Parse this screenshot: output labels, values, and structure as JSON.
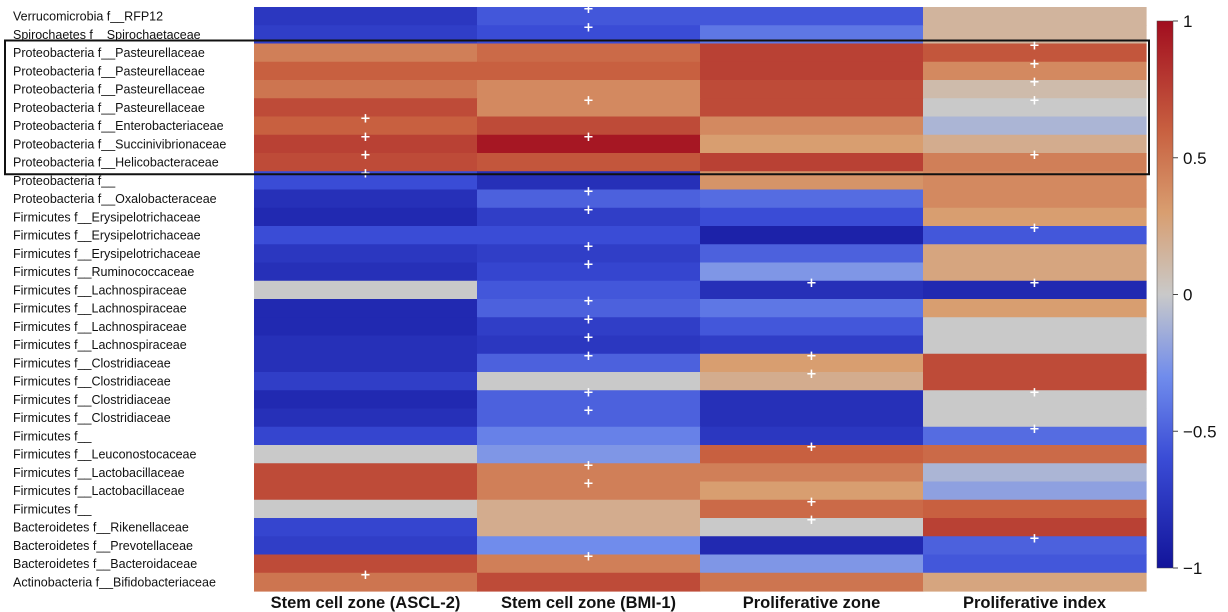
{
  "chart_data": {
    "type": "heatmap",
    "rows": [
      "Verrucomicrobia f__RFP12",
      "Spirochaetes f__Spirochaetaceae",
      "Proteobacteria f__Pasteurellaceae",
      "Proteobacteria f__Pasteurellaceae",
      "Proteobacteria f__Pasteurellaceae",
      "Proteobacteria f__Pasteurellaceae",
      "Proteobacteria f__Enterobacteriaceae",
      "Proteobacteria f__Succinivibrionaceae",
      "Proteobacteria f__Helicobacteraceae",
      "Proteobacteria f__",
      "Proteobacteria f__Oxalobacteraceae",
      "Firmicutes f__Erysipelotrichaceae",
      "Firmicutes f__Erysipelotrichaceae",
      "Firmicutes f__Erysipelotrichaceae",
      "Firmicutes f__Ruminococcaceae",
      "Firmicutes f__Lachnospiraceae",
      "Firmicutes f__Lachnospiraceae",
      "Firmicutes f__Lachnospiraceae",
      "Firmicutes f__Lachnospiraceae",
      "Firmicutes f__Clostridiaceae",
      "Firmicutes f__Clostridiaceae",
      "Firmicutes f__Clostridiaceae",
      "Firmicutes f__Clostridiaceae",
      "Firmicutes f__",
      "Firmicutes f__Leuconostocaceae",
      "Firmicutes f__Lactobacillaceae",
      "Firmicutes f__Lactobacillaceae",
      "Firmicutes f__",
      "Bacteroidetes f__Rikenellaceae",
      "Bacteroidetes f__Prevotellaceae",
      "Bacteroidetes f__Bacteroidaceae",
      "Actinobacteria f__Bifidobacteriaceae"
    ],
    "columns": [
      "Stem cell zone (ASCL-2)",
      "Stem cell zone (BMI-1)",
      "Proliferative zone",
      "Proliferative  index"
    ],
    "values": [
      [
        -0.75,
        -0.55,
        -0.55,
        0.15
      ],
      [
        -0.7,
        -0.6,
        -0.4,
        0.15
      ],
      [
        0.45,
        0.55,
        0.75,
        0.65
      ],
      [
        0.6,
        0.6,
        0.75,
        0.4
      ],
      [
        0.5,
        0.4,
        0.7,
        0.1
      ],
      [
        0.7,
        0.4,
        0.7,
        0.0
      ],
      [
        0.6,
        0.7,
        0.4,
        -0.1
      ],
      [
        0.75,
        0.95,
        0.3,
        0.2
      ],
      [
        0.7,
        0.65,
        0.75,
        0.45
      ],
      [
        -0.6,
        -0.8,
        0.35,
        0.4
      ],
      [
        -0.8,
        -0.5,
        -0.45,
        0.4
      ],
      [
        -0.85,
        -0.7,
        -0.6,
        0.3
      ],
      [
        -0.6,
        -0.6,
        -0.9,
        -0.55
      ],
      [
        -0.75,
        -0.7,
        -0.5,
        0.25
      ],
      [
        -0.8,
        -0.65,
        -0.25,
        0.25
      ],
      [
        0.0,
        -0.55,
        -0.8,
        -0.85
      ],
      [
        -0.85,
        -0.5,
        -0.4,
        0.3
      ],
      [
        -0.85,
        -0.7,
        -0.55,
        0.0
      ],
      [
        -0.8,
        -0.75,
        -0.7,
        0.0
      ],
      [
        -0.8,
        -0.5,
        0.3,
        0.7
      ],
      [
        -0.7,
        0.0,
        0.2,
        0.7
      ],
      [
        -0.85,
        -0.5,
        -0.8,
        0.0
      ],
      [
        -0.8,
        -0.5,
        -0.8,
        0.0
      ],
      [
        -0.65,
        -0.35,
        -0.75,
        -0.45
      ],
      [
        0.0,
        -0.25,
        0.6,
        0.55
      ],
      [
        0.7,
        0.45,
        0.45,
        -0.1
      ],
      [
        0.7,
        0.45,
        0.3,
        -0.2
      ],
      [
        0.0,
        0.2,
        0.55,
        0.6
      ],
      [
        -0.65,
        0.2,
        0.0,
        0.75
      ],
      [
        -0.7,
        -0.3,
        -0.85,
        -0.5
      ],
      [
        0.7,
        0.45,
        -0.25,
        -0.55
      ],
      [
        0.5,
        0.7,
        0.5,
        0.25
      ]
    ],
    "significant": [
      [
        false,
        true,
        false,
        false
      ],
      [
        false,
        true,
        false,
        false
      ],
      [
        false,
        false,
        false,
        true
      ],
      [
        false,
        false,
        false,
        true
      ],
      [
        false,
        false,
        false,
        true
      ],
      [
        false,
        true,
        false,
        true
      ],
      [
        true,
        false,
        false,
        false
      ],
      [
        true,
        true,
        false,
        false
      ],
      [
        true,
        false,
        false,
        true
      ],
      [
        true,
        false,
        false,
        false
      ],
      [
        false,
        true,
        false,
        false
      ],
      [
        false,
        true,
        false,
        false
      ],
      [
        false,
        false,
        false,
        true
      ],
      [
        false,
        true,
        false,
        false
      ],
      [
        false,
        true,
        false,
        false
      ],
      [
        false,
        false,
        true,
        true
      ],
      [
        false,
        true,
        false,
        false
      ],
      [
        false,
        true,
        false,
        false
      ],
      [
        false,
        true,
        false,
        false
      ],
      [
        false,
        true,
        true,
        false
      ],
      [
        false,
        false,
        true,
        false
      ],
      [
        false,
        true,
        false,
        true
      ],
      [
        false,
        true,
        false,
        false
      ],
      [
        false,
        false,
        false,
        true
      ],
      [
        false,
        false,
        true,
        false
      ],
      [
        false,
        true,
        false,
        false
      ],
      [
        false,
        true,
        false,
        false
      ],
      [
        false,
        false,
        true,
        false
      ],
      [
        false,
        false,
        true,
        false
      ],
      [
        false,
        false,
        false,
        true
      ],
      [
        false,
        true,
        false,
        false
      ],
      [
        true,
        false,
        false,
        false
      ]
    ],
    "marker": "+",
    "colorbar": {
      "ticks": [
        1,
        0.5,
        0,
        -0.5,
        -1
      ],
      "tick_labels": [
        "1",
        "0.5",
        "0",
        "−0.5",
        "−1"
      ],
      "range": [
        -1,
        1
      ],
      "colors": {
        "min": "#12149a",
        "mid": "#c9c9c9",
        "max": "#a10d1f"
      }
    },
    "highlight_rows": [
      2,
      8
    ]
  }
}
